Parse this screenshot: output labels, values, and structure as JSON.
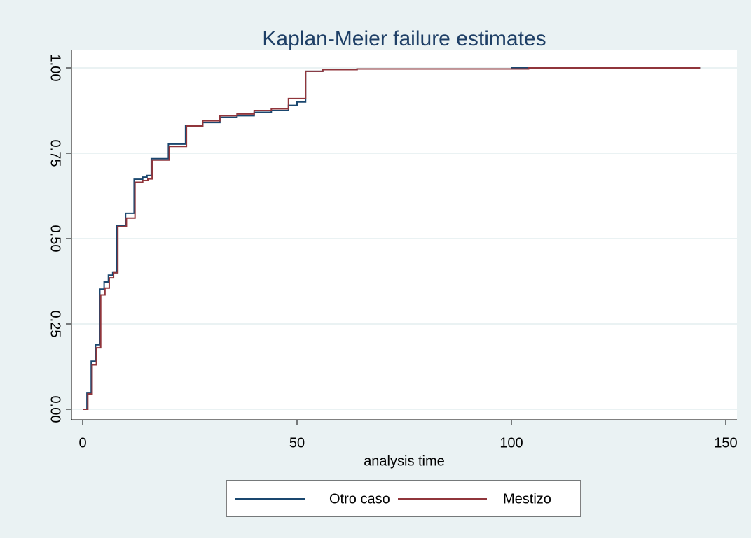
{
  "chart_data": {
    "type": "line",
    "step": "post",
    "title": "Kaplan-Meier failure estimates",
    "xlabel": "analysis time",
    "xlim": [
      0,
      150
    ],
    "xticks": [
      0,
      50,
      100,
      150
    ],
    "ylim": [
      0,
      1
    ],
    "yticks": [
      {
        "value": 0,
        "label": "0.00"
      },
      {
        "value": 0.25,
        "label": "0.25"
      },
      {
        "value": 0.5,
        "label": "0.50"
      },
      {
        "value": 0.75,
        "label": "0.75"
      },
      {
        "value": 1,
        "label": "1.00"
      }
    ],
    "grid": true,
    "legend": "bottom",
    "series": [
      {
        "name": "Otro caso",
        "color": "#1a476f",
        "x": [
          0,
          1,
          2,
          3,
          4,
          5,
          6,
          7,
          8,
          10,
          12,
          14,
          15,
          16,
          20,
          24,
          28,
          32,
          36,
          40,
          44,
          48,
          50,
          52,
          56,
          64,
          100,
          144
        ],
        "values": [
          0,
          0.047,
          0.141,
          0.189,
          0.352,
          0.373,
          0.393,
          0.4,
          0.539,
          0.574,
          0.674,
          0.68,
          0.685,
          0.734,
          0.777,
          0.83,
          0.84,
          0.855,
          0.86,
          0.87,
          0.875,
          0.89,
          0.9,
          0.99,
          0.995,
          0.997,
          1,
          1
        ]
      },
      {
        "name": "Mestizo",
        "color": "#90353b",
        "x": [
          0,
          1.2,
          2.2,
          3.2,
          4.2,
          5.2,
          6.2,
          7.2,
          8.2,
          10.2,
          12.2,
          14,
          15.2,
          16.2,
          20.2,
          24.2,
          28,
          32,
          36,
          40,
          44,
          48,
          52,
          56,
          64,
          104,
          144
        ],
        "values": [
          0,
          0.045,
          0.13,
          0.18,
          0.335,
          0.355,
          0.385,
          0.4,
          0.535,
          0.56,
          0.665,
          0.67,
          0.675,
          0.73,
          0.77,
          0.83,
          0.845,
          0.86,
          0.865,
          0.875,
          0.88,
          0.91,
          0.99,
          0.995,
          0.997,
          1,
          1
        ]
      }
    ]
  }
}
